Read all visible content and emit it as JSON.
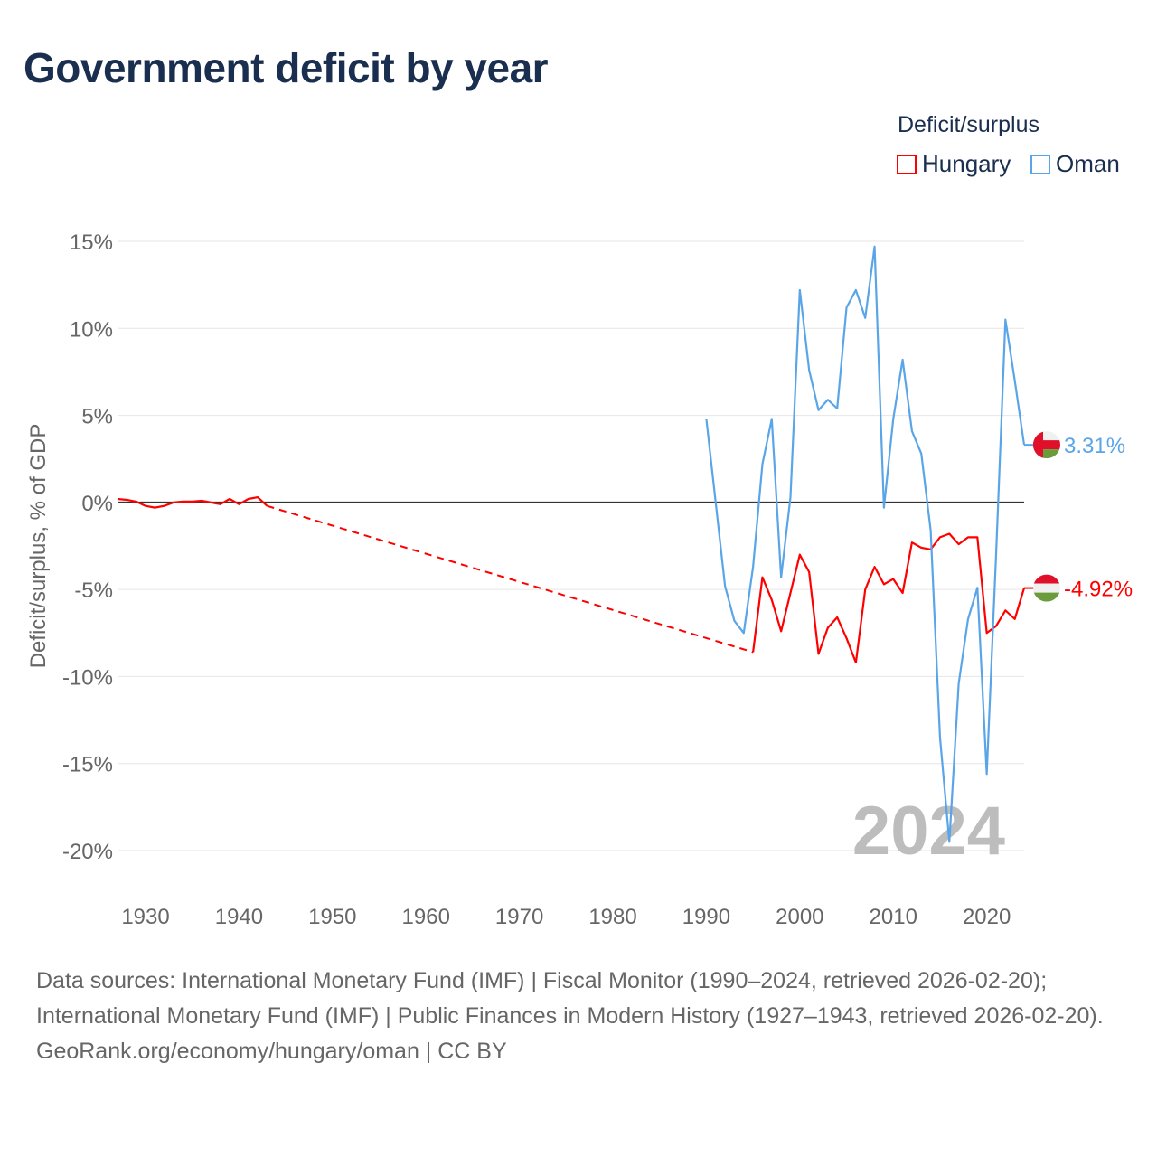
{
  "title": "Government deficit by year",
  "legend": {
    "title": "Deficit/surplus",
    "items": [
      {
        "label": "Hungary",
        "color": "#ff0000"
      },
      {
        "label": "Oman",
        "color": "#5aa5e8"
      }
    ]
  },
  "footer": {
    "sources": "Data sources: International Monetary Fund (IMF) | Fiscal Monitor (1990–2024, retrieved 2026-02-20); International Monetary Fund (IMF) | Public Finances in Modern History (1927–1943, retrieved 2026-02-20).",
    "credit": "GeoRank.org/economy/hungary/oman | CC BY"
  },
  "chart_data": {
    "type": "line",
    "title": "Government deficit by year",
    "xlabel": "",
    "ylabel": "Deficit/surplus, % of GDP",
    "xlim": [
      1927,
      2024
    ],
    "ylim": [
      -20,
      15
    ],
    "x_ticks": [
      "1930",
      "1940",
      "1950",
      "1960",
      "1970",
      "1980",
      "1990",
      "2000",
      "2010",
      "2020"
    ],
    "y_ticks": [
      "15%",
      "10%",
      "5%",
      "0%",
      "-5%",
      "-10%",
      "-15%",
      "-20%"
    ],
    "year_watermark": "2024",
    "series": [
      {
        "name": "Hungary",
        "color": "#ff0000",
        "end_label": "-4.92%",
        "x": [
          1927,
          1928,
          1929,
          1930,
          1931,
          1932,
          1933,
          1934,
          1935,
          1936,
          1937,
          1938,
          1939,
          1940,
          1941,
          1942,
          1943,
          1995,
          1996,
          1997,
          1998,
          1999,
          2000,
          2001,
          2002,
          2003,
          2004,
          2005,
          2006,
          2007,
          2008,
          2009,
          2010,
          2011,
          2012,
          2013,
          2014,
          2015,
          2016,
          2017,
          2018,
          2019,
          2020,
          2021,
          2022,
          2023,
          2024
        ],
        "values": [
          0.2,
          0.15,
          0.05,
          -0.2,
          -0.3,
          -0.2,
          0.0,
          0.05,
          0.05,
          0.1,
          0.0,
          -0.1,
          0.2,
          -0.1,
          0.2,
          0.3,
          -0.2,
          -8.6,
          -4.3,
          -5.6,
          -7.4,
          -5.2,
          -3.0,
          -4.0,
          -8.7,
          -7.2,
          -6.6,
          -7.8,
          -9.2,
          -5.0,
          -3.7,
          -4.7,
          -4.4,
          -5.2,
          -2.3,
          -2.6,
          -2.7,
          -2.0,
          -1.8,
          -2.4,
          -2.0,
          -2.0,
          -7.5,
          -7.1,
          -6.2,
          -6.7,
          -4.92
        ],
        "gap": [
          1943,
          1995
        ]
      },
      {
        "name": "Oman",
        "color": "#5aa5e8",
        "end_label": "3.31%",
        "x": [
          1990,
          1991,
          1992,
          1993,
          1994,
          1995,
          1996,
          1997,
          1998,
          1999,
          2000,
          2001,
          2002,
          2003,
          2004,
          2005,
          2006,
          2007,
          2008,
          2009,
          2010,
          2011,
          2012,
          2013,
          2014,
          2015,
          2016,
          2017,
          2018,
          2019,
          2020,
          2021,
          2022,
          2023,
          2024
        ],
        "values": [
          4.8,
          0.0,
          -4.8,
          -6.8,
          -7.5,
          -3.7,
          2.2,
          4.8,
          -4.3,
          0.3,
          12.2,
          7.6,
          5.3,
          5.9,
          5.4,
          11.2,
          12.2,
          10.6,
          14.7,
          -0.3,
          4.8,
          8.2,
          4.1,
          2.8,
          -1.6,
          -13.5,
          -19.5,
          -10.4,
          -6.7,
          -4.9,
          -15.6,
          -3.0,
          10.5,
          7.0,
          3.31
        ]
      }
    ]
  }
}
